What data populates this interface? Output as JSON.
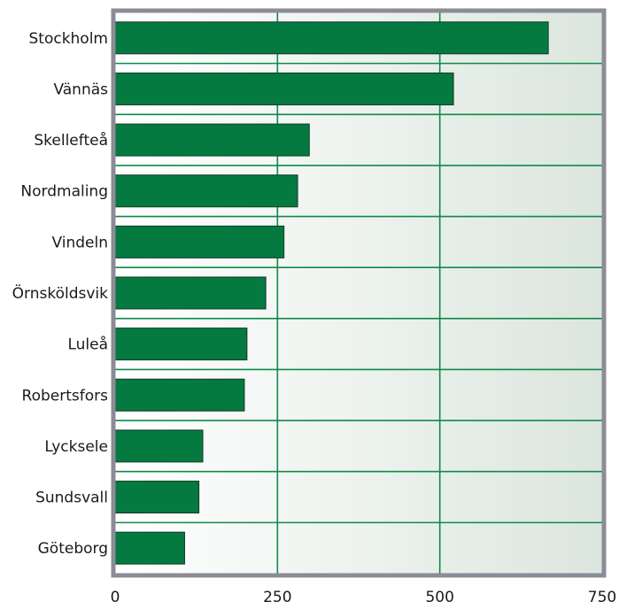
{
  "chart_data": {
    "type": "bar",
    "orientation": "horizontal",
    "title": "",
    "xlabel": "",
    "ylabel": "",
    "categories": [
      "Stockholm",
      "Vännäs",
      "Skellefteå",
      "Nordmaling",
      "Vindeln",
      "Örnsköldsvik",
      "Luleå",
      "Robertsfors",
      "Lycksele",
      "Sundsvall",
      "Göteborg"
    ],
    "values": [
      667,
      521,
      299,
      281,
      260,
      232,
      203,
      199,
      135,
      129,
      107
    ],
    "xlim": [
      0,
      750
    ],
    "xticks": [
      0,
      250,
      500,
      750
    ],
    "xtick_labels": [
      "0",
      "250",
      "500",
      "750"
    ],
    "grid": true,
    "legend": "none",
    "colors": {
      "bar": "#047a40",
      "bar_edge": "#123a22",
      "grid": "#0e8a4a",
      "frame": "#8c8c96",
      "plot_bg_left": "#ffffff",
      "plot_bg_right": "#dbe6de"
    }
  }
}
